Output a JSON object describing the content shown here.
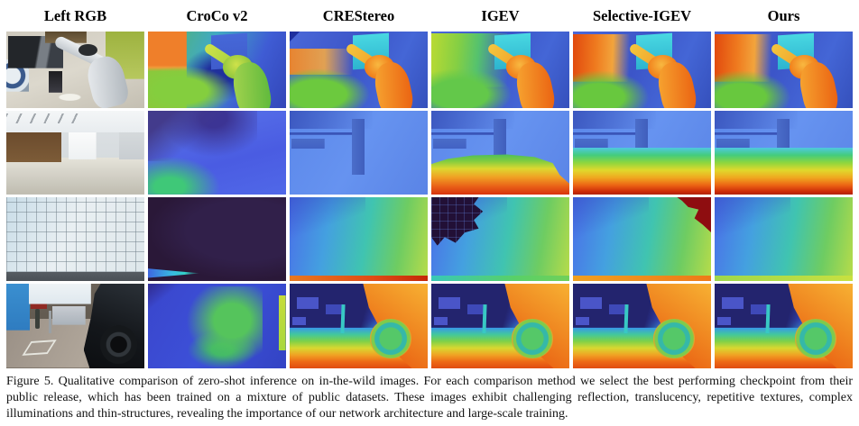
{
  "figure": {
    "columns": [
      {
        "id": "left-rgb",
        "label": "Left RGB"
      },
      {
        "id": "croco-v2",
        "label": "CroCo v2"
      },
      {
        "id": "crestereo",
        "label": "CREStereo"
      },
      {
        "id": "igev",
        "label": "IGEV"
      },
      {
        "id": "selective-igev",
        "label": "Selective-IGEV"
      },
      {
        "id": "ours",
        "label": "Ours"
      }
    ],
    "rows": [
      {
        "id": "robot-arm-kitchen"
      },
      {
        "id": "reflective-lobby"
      },
      {
        "id": "tiled-wall"
      },
      {
        "id": "street-vehicle"
      }
    ],
    "caption": "Figure 5. Qualitative comparison of zero-shot inference on in-the-wild images. For each comparison method we select the best performing checkpoint from their public release, which has been trained on a mixture of public datasets. These images exhibit challenging reflection, translucency, repetitive textures, complex illuminations and thin-structures, revealing the importance of our network architecture and large-scale training."
  },
  "palette": {
    "depth_near_red": "#e04c10",
    "depth_orange": "#f09a28",
    "depth_yellow": "#ddd830",
    "depth_green": "#57c85a",
    "depth_cyan": "#38c8c4",
    "depth_blue": "#3c55c8",
    "depth_far_navy": "#23246e",
    "croco_failure_purple": "#2d1c3e",
    "selective_failure_red": "#8e0d10"
  }
}
